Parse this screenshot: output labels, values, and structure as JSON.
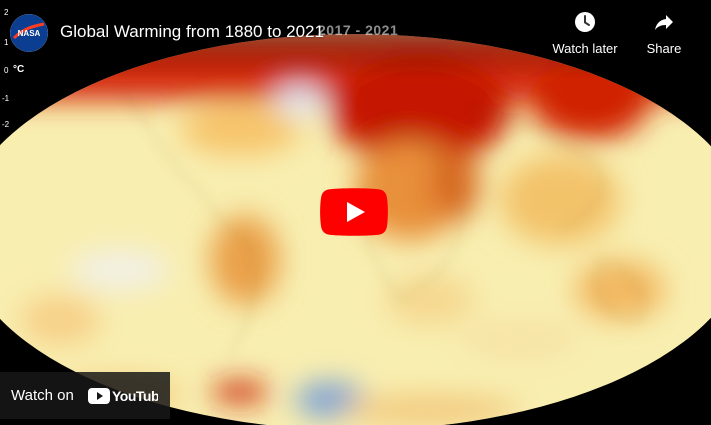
{
  "video": {
    "title": "Global Warming from 1880 to 2021",
    "date_range": "2017 - 2021"
  },
  "channel": {
    "name": "NASA",
    "logo_text": "NASA"
  },
  "scale": {
    "unit": "°C",
    "ticks": [
      "2",
      "1",
      "0",
      "-1",
      "-2"
    ]
  },
  "actions": {
    "watch_later_label": "Watch later",
    "share_label": "Share"
  },
  "watch_on": {
    "label": "Watch on",
    "platform": "YouTube"
  },
  "icons": {
    "watch_later": "clock-icon",
    "share": "share-arrow-icon",
    "play": "play-icon",
    "logo": "youtube-logo-icon"
  },
  "colors": {
    "play_button": "#ff0000",
    "hot": "#c81400",
    "warm": "#f5a623",
    "neutral": "#f8efb0",
    "cool": "#a8c4e8",
    "background": "#000000"
  }
}
